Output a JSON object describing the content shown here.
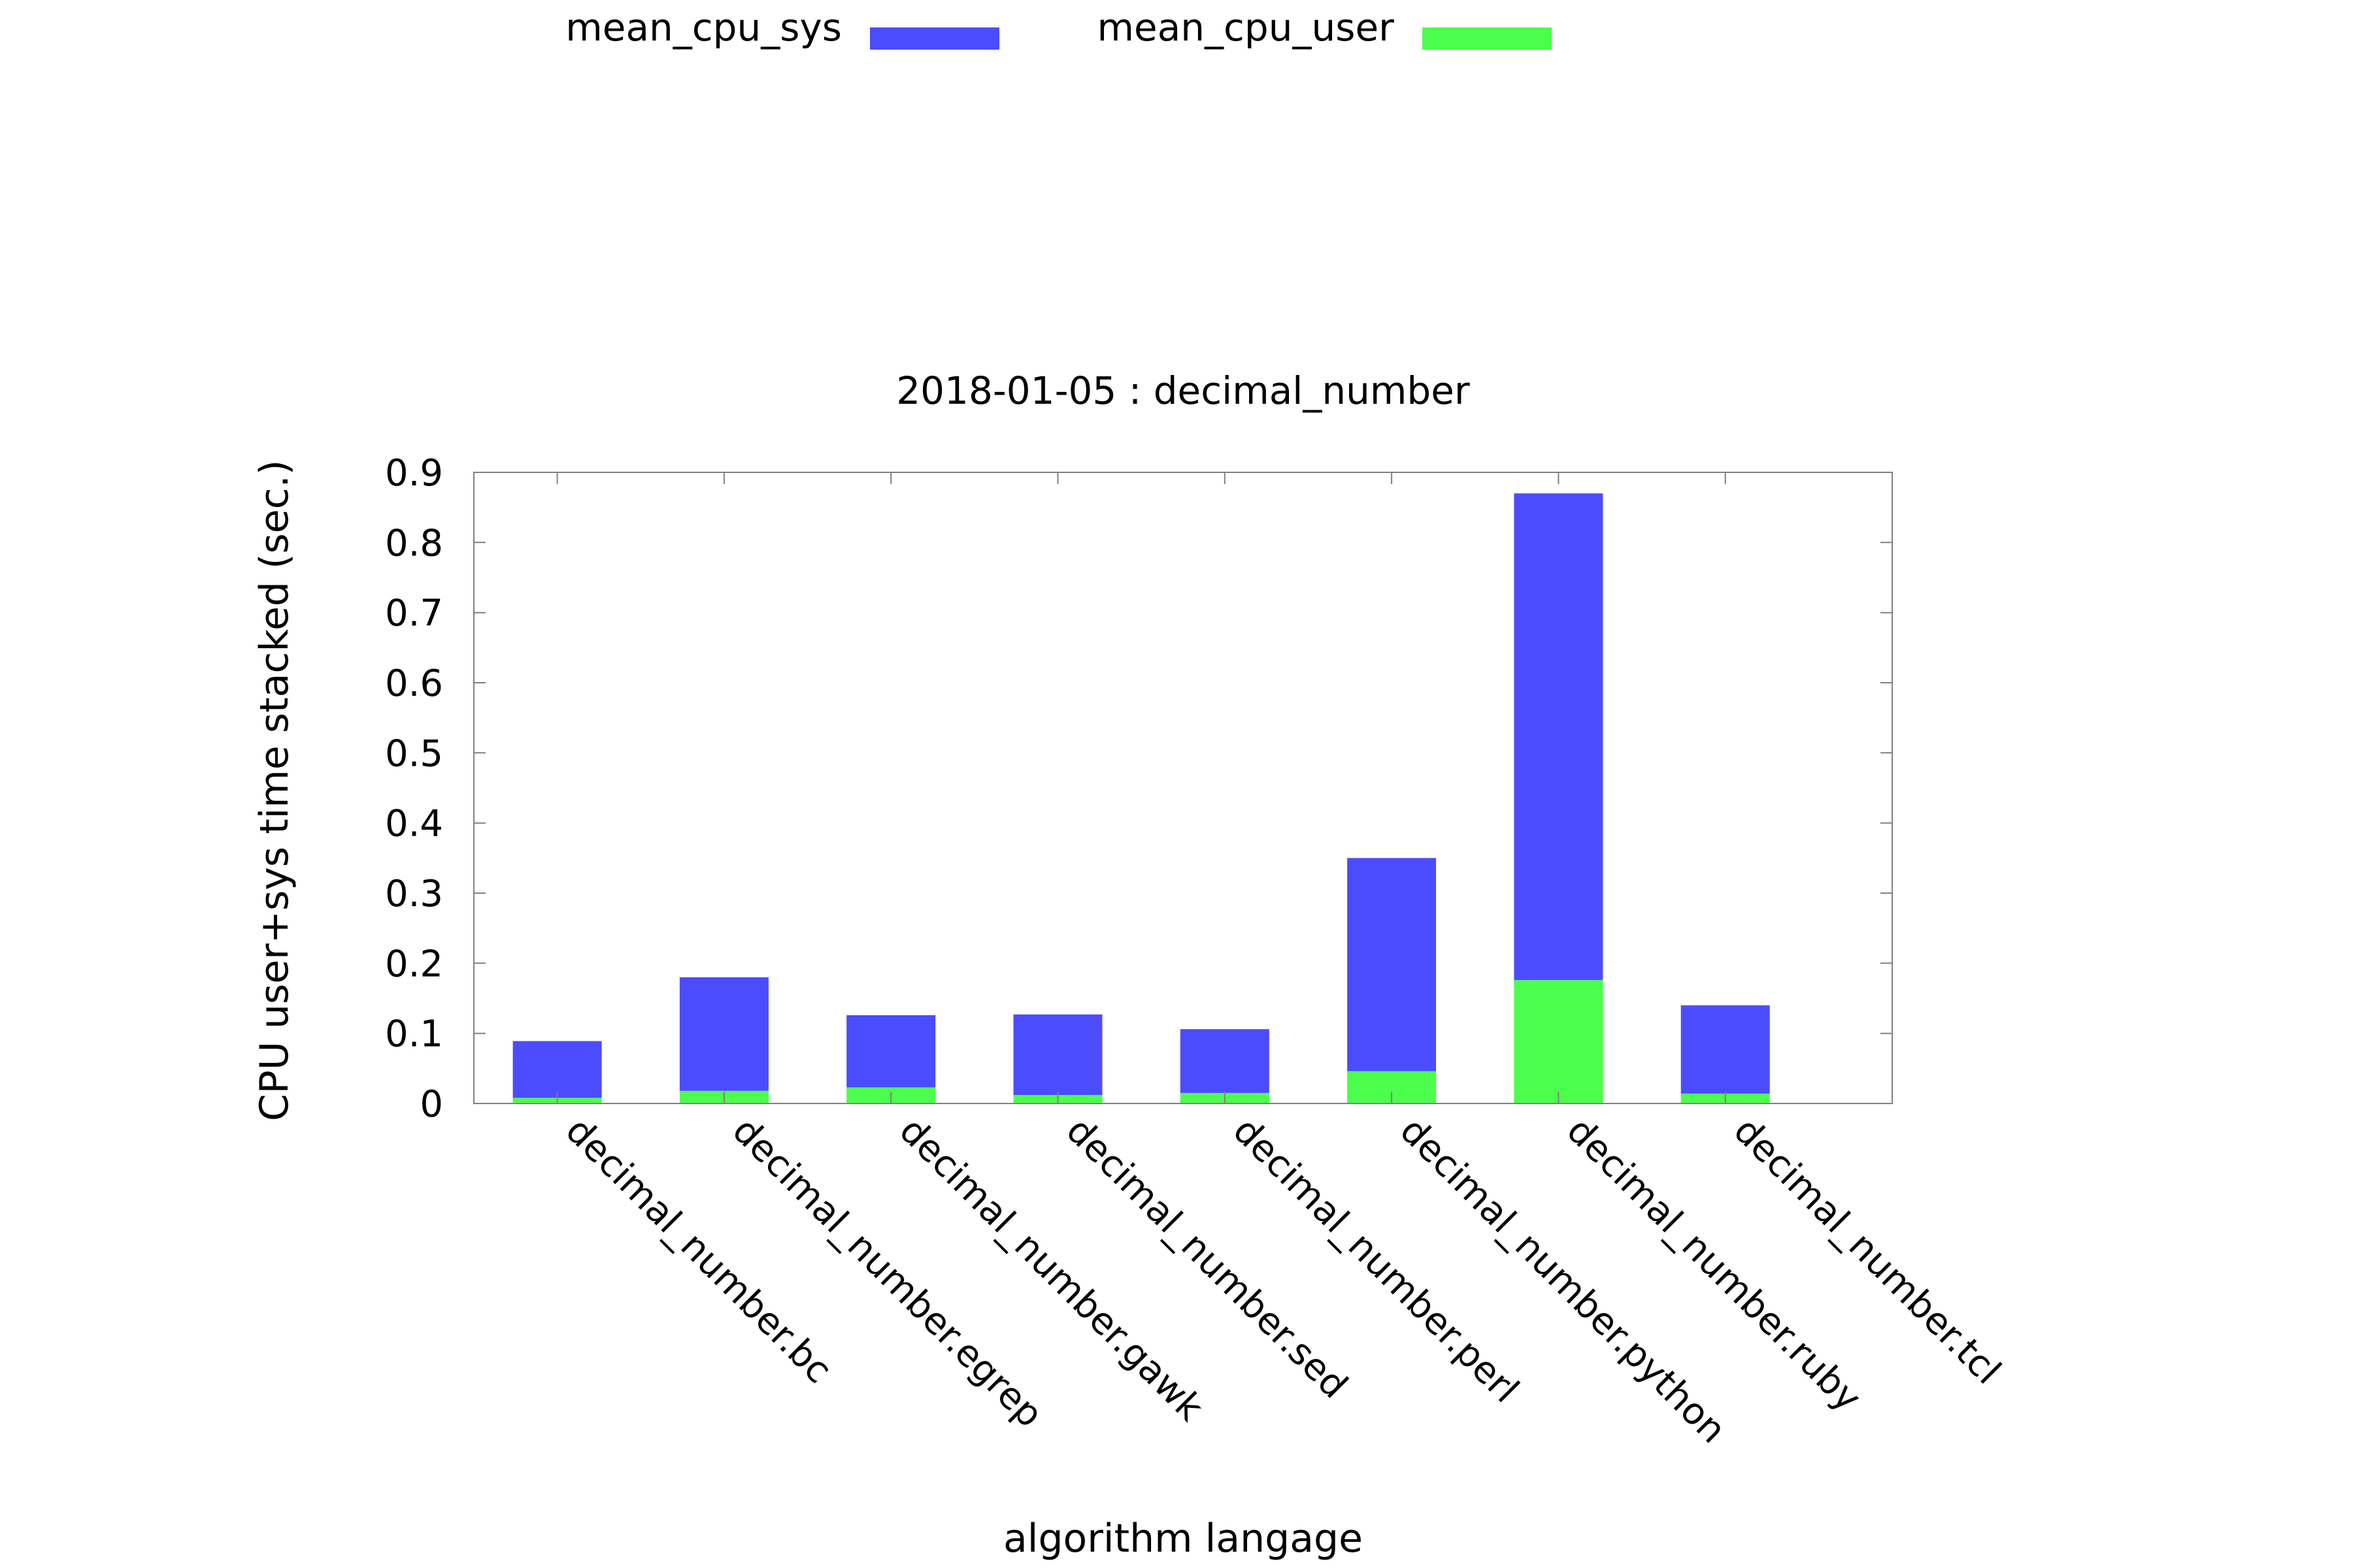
{
  "chart_data": {
    "type": "bar",
    "stacked": true,
    "title": "2018-01-05 : decimal_number",
    "xlabel": "algorithm langage",
    "ylabel": "CPU user+sys time stacked (sec.)",
    "ylim": [
      0,
      0.9
    ],
    "yticks": [
      "0",
      "0.1",
      "0.2",
      "0.3",
      "0.4",
      "0.5",
      "0.6",
      "0.7",
      "0.8",
      "0.9"
    ],
    "grid": false,
    "legend_position": "top",
    "categories": [
      "decimal_number.bc",
      "decimal_number.egrep",
      "decimal_number.gawk",
      "decimal_number.sed",
      "decimal_number.perl",
      "decimal_number.python",
      "decimal_number.ruby",
      "decimal_number.tcl"
    ],
    "series": [
      {
        "name": "mean_cpu_user",
        "color": "#4cff4c",
        "values": [
          0.008,
          0.018,
          0.023,
          0.012,
          0.015,
          0.046,
          0.176,
          0.014
        ]
      },
      {
        "name": "mean_cpu_sys",
        "color": "#4c4cff",
        "values": [
          0.081,
          0.162,
          0.103,
          0.115,
          0.091,
          0.304,
          0.694,
          0.126
        ]
      }
    ],
    "legend": [
      {
        "name": "mean_cpu_sys",
        "color": "#4c4cff"
      },
      {
        "name": "mean_cpu_user",
        "color": "#4cff4c"
      }
    ]
  }
}
